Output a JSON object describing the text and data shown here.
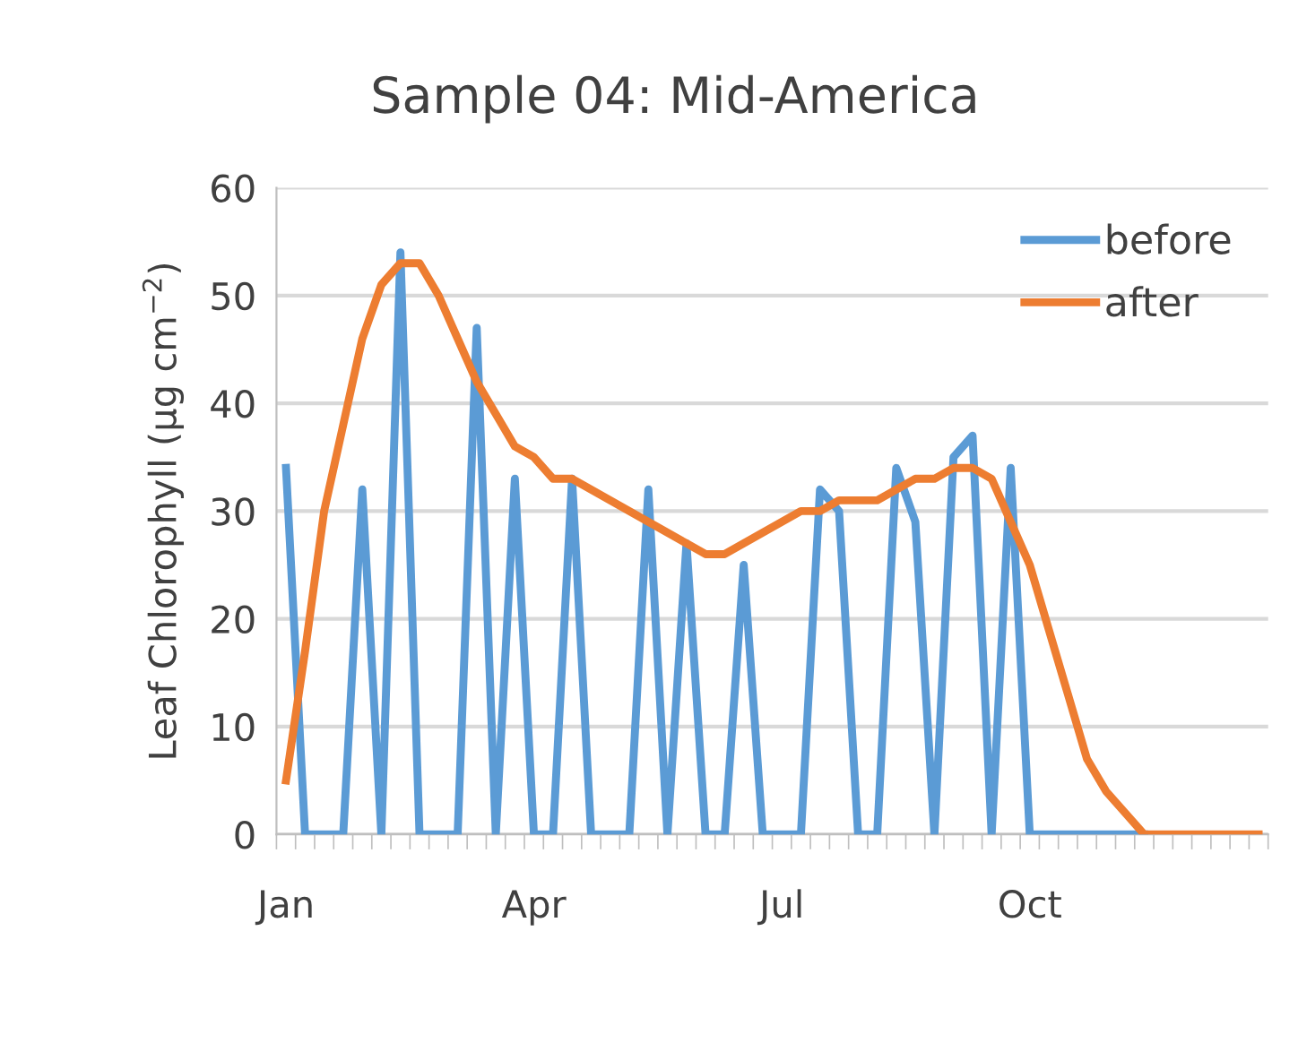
{
  "chart_data": {
    "type": "line",
    "title": "Sample 04: Mid-America",
    "ylabel": "Leaf Chlorophyll (μg cm$^{−2}$)",
    "categories": [
      "Jan",
      null,
      null,
      null,
      null,
      null,
      null,
      null,
      null,
      null,
      null,
      null,
      null,
      "Apr",
      null,
      null,
      null,
      null,
      null,
      null,
      null,
      null,
      null,
      null,
      null,
      null,
      "Jul",
      null,
      null,
      null,
      null,
      null,
      null,
      null,
      null,
      null,
      null,
      null,
      null,
      "Oct",
      null,
      null,
      null,
      null,
      null,
      null,
      null,
      null,
      null,
      null,
      null,
      null
    ],
    "series": [
      {
        "name": "before",
        "color": "#5b9bd5",
        "values": [
          34,
          0,
          0,
          0,
          32,
          0,
          54,
          0,
          0,
          0,
          47,
          0,
          33,
          0,
          0,
          33,
          0,
          0,
          0,
          32,
          0,
          27,
          0,
          0,
          25,
          0,
          0,
          0,
          32,
          30,
          0,
          0,
          34,
          29,
          0,
          35,
          37,
          0,
          34,
          0,
          0,
          0,
          0,
          0,
          0,
          0,
          null,
          null,
          null,
          null,
          null,
          null
        ]
      },
      {
        "name": "after",
        "color": "#ed7d31",
        "values": [
          5,
          17,
          30,
          38,
          46,
          51,
          53,
          53,
          50,
          46,
          42,
          39,
          36,
          35,
          33,
          33,
          32,
          31,
          30,
          29,
          28,
          27,
          26,
          26,
          27,
          28,
          29,
          30,
          30,
          31,
          31,
          31,
          32,
          33,
          33,
          34,
          34,
          33,
          29,
          25,
          19,
          13,
          7,
          4,
          2,
          0,
          0,
          0,
          0,
          0,
          0,
          0
        ]
      }
    ],
    "ylim": [
      0,
      60
    ],
    "yticks": [
      0,
      10,
      20,
      30,
      40,
      50,
      60
    ],
    "grid": "y",
    "legend": "top right",
    "marker": "none",
    "line_style": "solid"
  }
}
